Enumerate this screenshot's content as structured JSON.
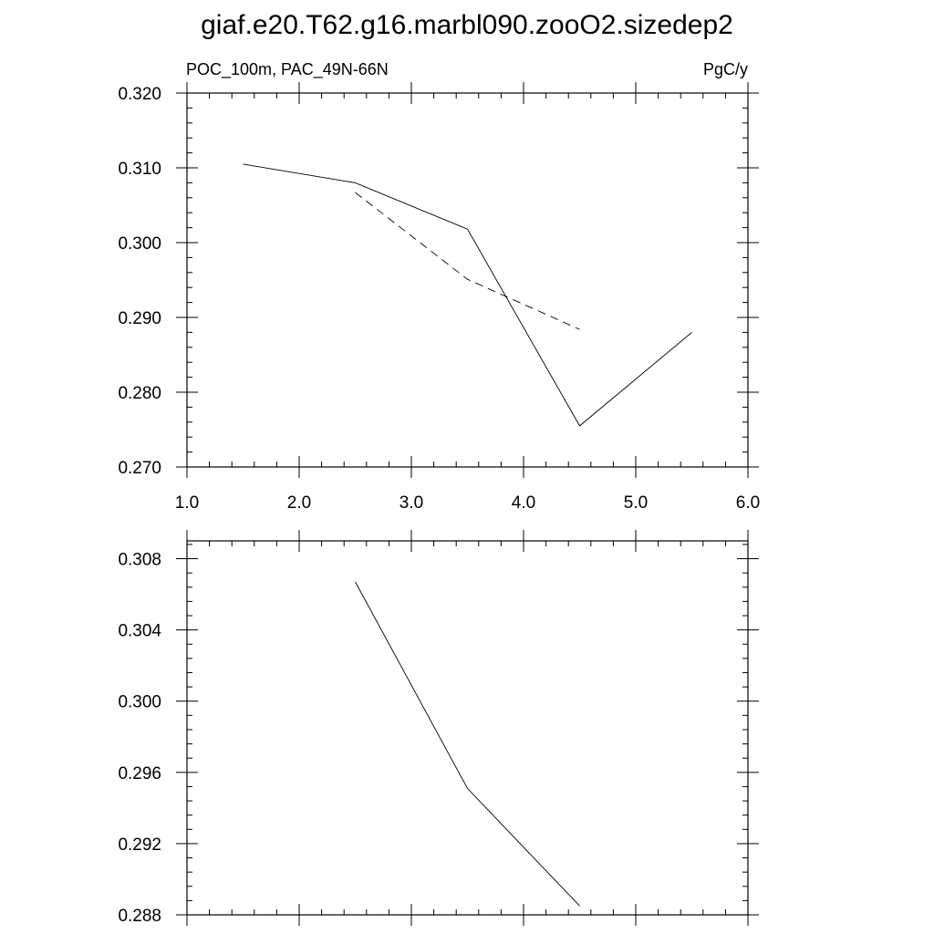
{
  "figure_title": "giaf.e20.T62.g16.marbl090.zooO2.sizedep2",
  "chart_data": [
    {
      "type": "line",
      "left_label": "POC_100m, PAC_49N-66N",
      "right_label": "PgC/y",
      "xlim": [
        1.0,
        6.0
      ],
      "ylim": [
        0.27,
        0.32
      ],
      "x_ticks": [
        1.0,
        2.0,
        3.0,
        4.0,
        5.0,
        6.0
      ],
      "x_tick_labels": [
        "1.0",
        "2.0",
        "3.0",
        "4.0",
        "5.0",
        "6.0"
      ],
      "y_ticks": [
        0.27,
        0.28,
        0.29,
        0.3,
        0.31,
        0.32
      ],
      "y_tick_labels": [
        "0.270",
        "0.280",
        "0.290",
        "0.300",
        "0.310",
        "0.320"
      ],
      "grid": false,
      "series": [
        {
          "style": "solid",
          "x": [
            1.5,
            2.5,
            3.5,
            4.5,
            5.5
          ],
          "y": [
            0.3105,
            0.308,
            0.3018,
            0.2755,
            0.288
          ]
        },
        {
          "style": "dashed",
          "x": [
            2.5,
            3.5,
            4.5
          ],
          "y": [
            0.3067,
            0.2951,
            0.2884
          ]
        }
      ]
    },
    {
      "type": "line",
      "xlim": [
        1.0,
        6.0
      ],
      "ylim": [
        0.288,
        0.309
      ],
      "x_ticks": [
        1.0,
        2.0,
        3.0,
        4.0,
        5.0,
        6.0
      ],
      "y_ticks": [
        0.288,
        0.292,
        0.296,
        0.3,
        0.304,
        0.308
      ],
      "y_tick_labels": [
        "0.288",
        "0.292",
        "0.296",
        "0.300",
        "0.304",
        "0.308"
      ],
      "grid": false,
      "series": [
        {
          "style": "solid",
          "x": [
            2.5,
            3.5,
            4.5
          ],
          "y": [
            0.3067,
            0.2951,
            0.2885
          ]
        }
      ]
    }
  ]
}
